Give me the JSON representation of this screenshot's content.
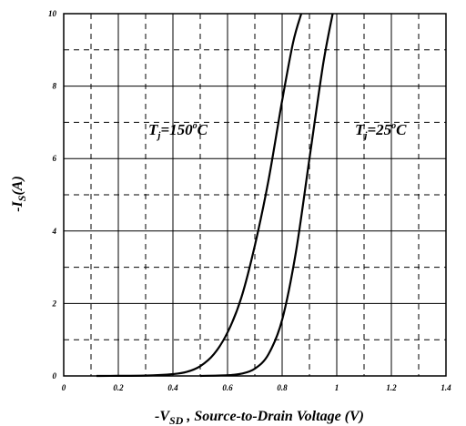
{
  "chart_data": {
    "type": "line",
    "xlabel": {
      "prefix": "-V",
      "sub": "SD",
      "suffix": " , Source-to-Drain Voltage (V)"
    },
    "ylabel": {
      "prefix": "-I",
      "sub": "S",
      "suffix": "(A)"
    },
    "xlim": [
      0,
      1.4
    ],
    "ylim": [
      0,
      10
    ],
    "x_ticks": [
      0,
      0.2,
      0.4,
      0.6,
      0.8,
      1.0,
      1.2,
      1.4
    ],
    "x_tick_labels": [
      "0",
      "0.2",
      "0.4",
      "0.6",
      "0.8",
      "1",
      "1.2",
      "1.4"
    ],
    "y_ticks": [
      0,
      2,
      4,
      6,
      8,
      10
    ],
    "y_tick_labels": [
      "0",
      "2",
      "4",
      "6",
      "8",
      "10"
    ],
    "x_minor_dashed": [
      0.1,
      0.3,
      0.5,
      0.7,
      0.9,
      1.1,
      1.3
    ],
    "y_minor_dashed": [
      1,
      3,
      5,
      7,
      9
    ],
    "grid": true,
    "series": [
      {
        "label": "T_j=150°C",
        "x": [
          0.12,
          0.3,
          0.4,
          0.45,
          0.5,
          0.55,
          0.6,
          0.65,
          0.7,
          0.75,
          0.8,
          0.84,
          0.87
        ],
        "y": [
          0,
          0.01,
          0.05,
          0.11,
          0.27,
          0.6,
          1.2,
          2.15,
          3.6,
          5.4,
          7.6,
          9.2,
          10
        ]
      },
      {
        "label": "T_j=25°C",
        "x": [
          0.5,
          0.6,
          0.65,
          0.7,
          0.75,
          0.8,
          0.85,
          0.9,
          0.95,
          0.985
        ],
        "y": [
          0,
          0.02,
          0.06,
          0.2,
          0.6,
          1.55,
          3.4,
          6.0,
          8.6,
          10
        ]
      }
    ],
    "annotations": [
      {
        "T": "T",
        "sub": "j",
        "mid": "=150",
        "sup": "o",
        "end": "C"
      },
      {
        "T": "T",
        "sub": "j",
        "mid": "=25",
        "sup": "o",
        "end": "C"
      }
    ]
  }
}
